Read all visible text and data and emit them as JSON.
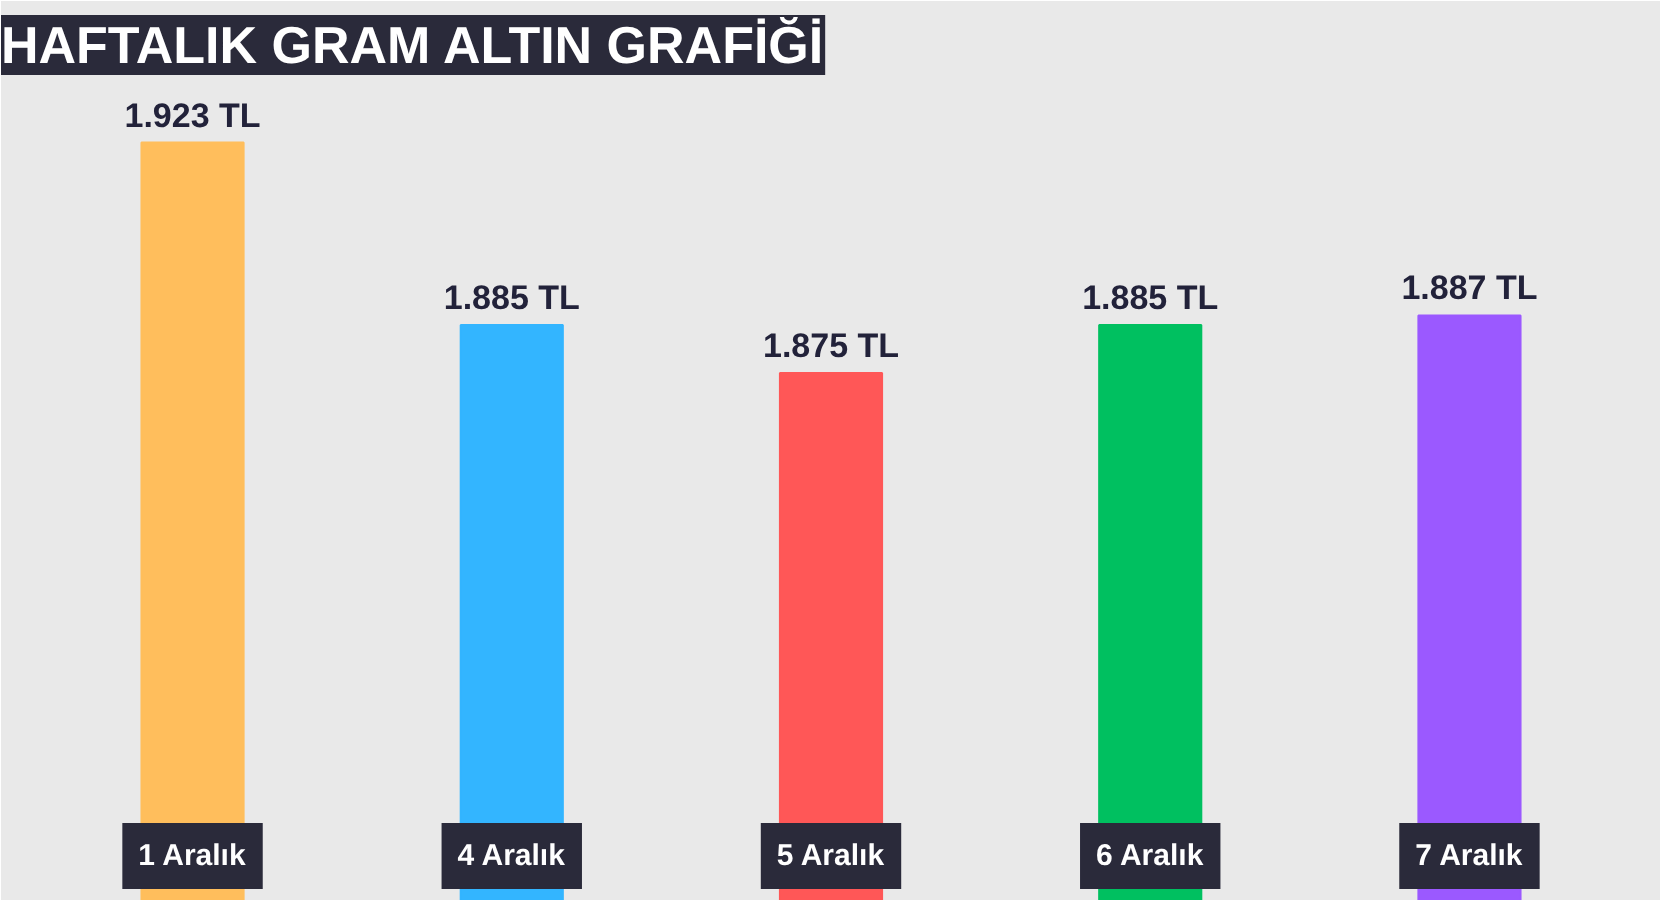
{
  "chart_data": {
    "type": "bar",
    "title": "HAFTALIK GRAM ALTIN GRAFİĞİ",
    "categories": [
      "1 Aralık",
      "4 Aralık",
      "5 Aralık",
      "6 Aralık",
      "7 Aralık"
    ],
    "values": [
      1923,
      1885,
      1875,
      1885,
      1887
    ],
    "value_labels": [
      "1.923 TL",
      "1.885 TL",
      "1.875 TL",
      "1.885 TL",
      "1.887 TL"
    ],
    "colors": [
      "#ffbe5c",
      "#33b5ff",
      "#ff5757",
      "#00c060",
      "#9b59ff"
    ],
    "ylim": [
      1765,
      1935
    ]
  }
}
